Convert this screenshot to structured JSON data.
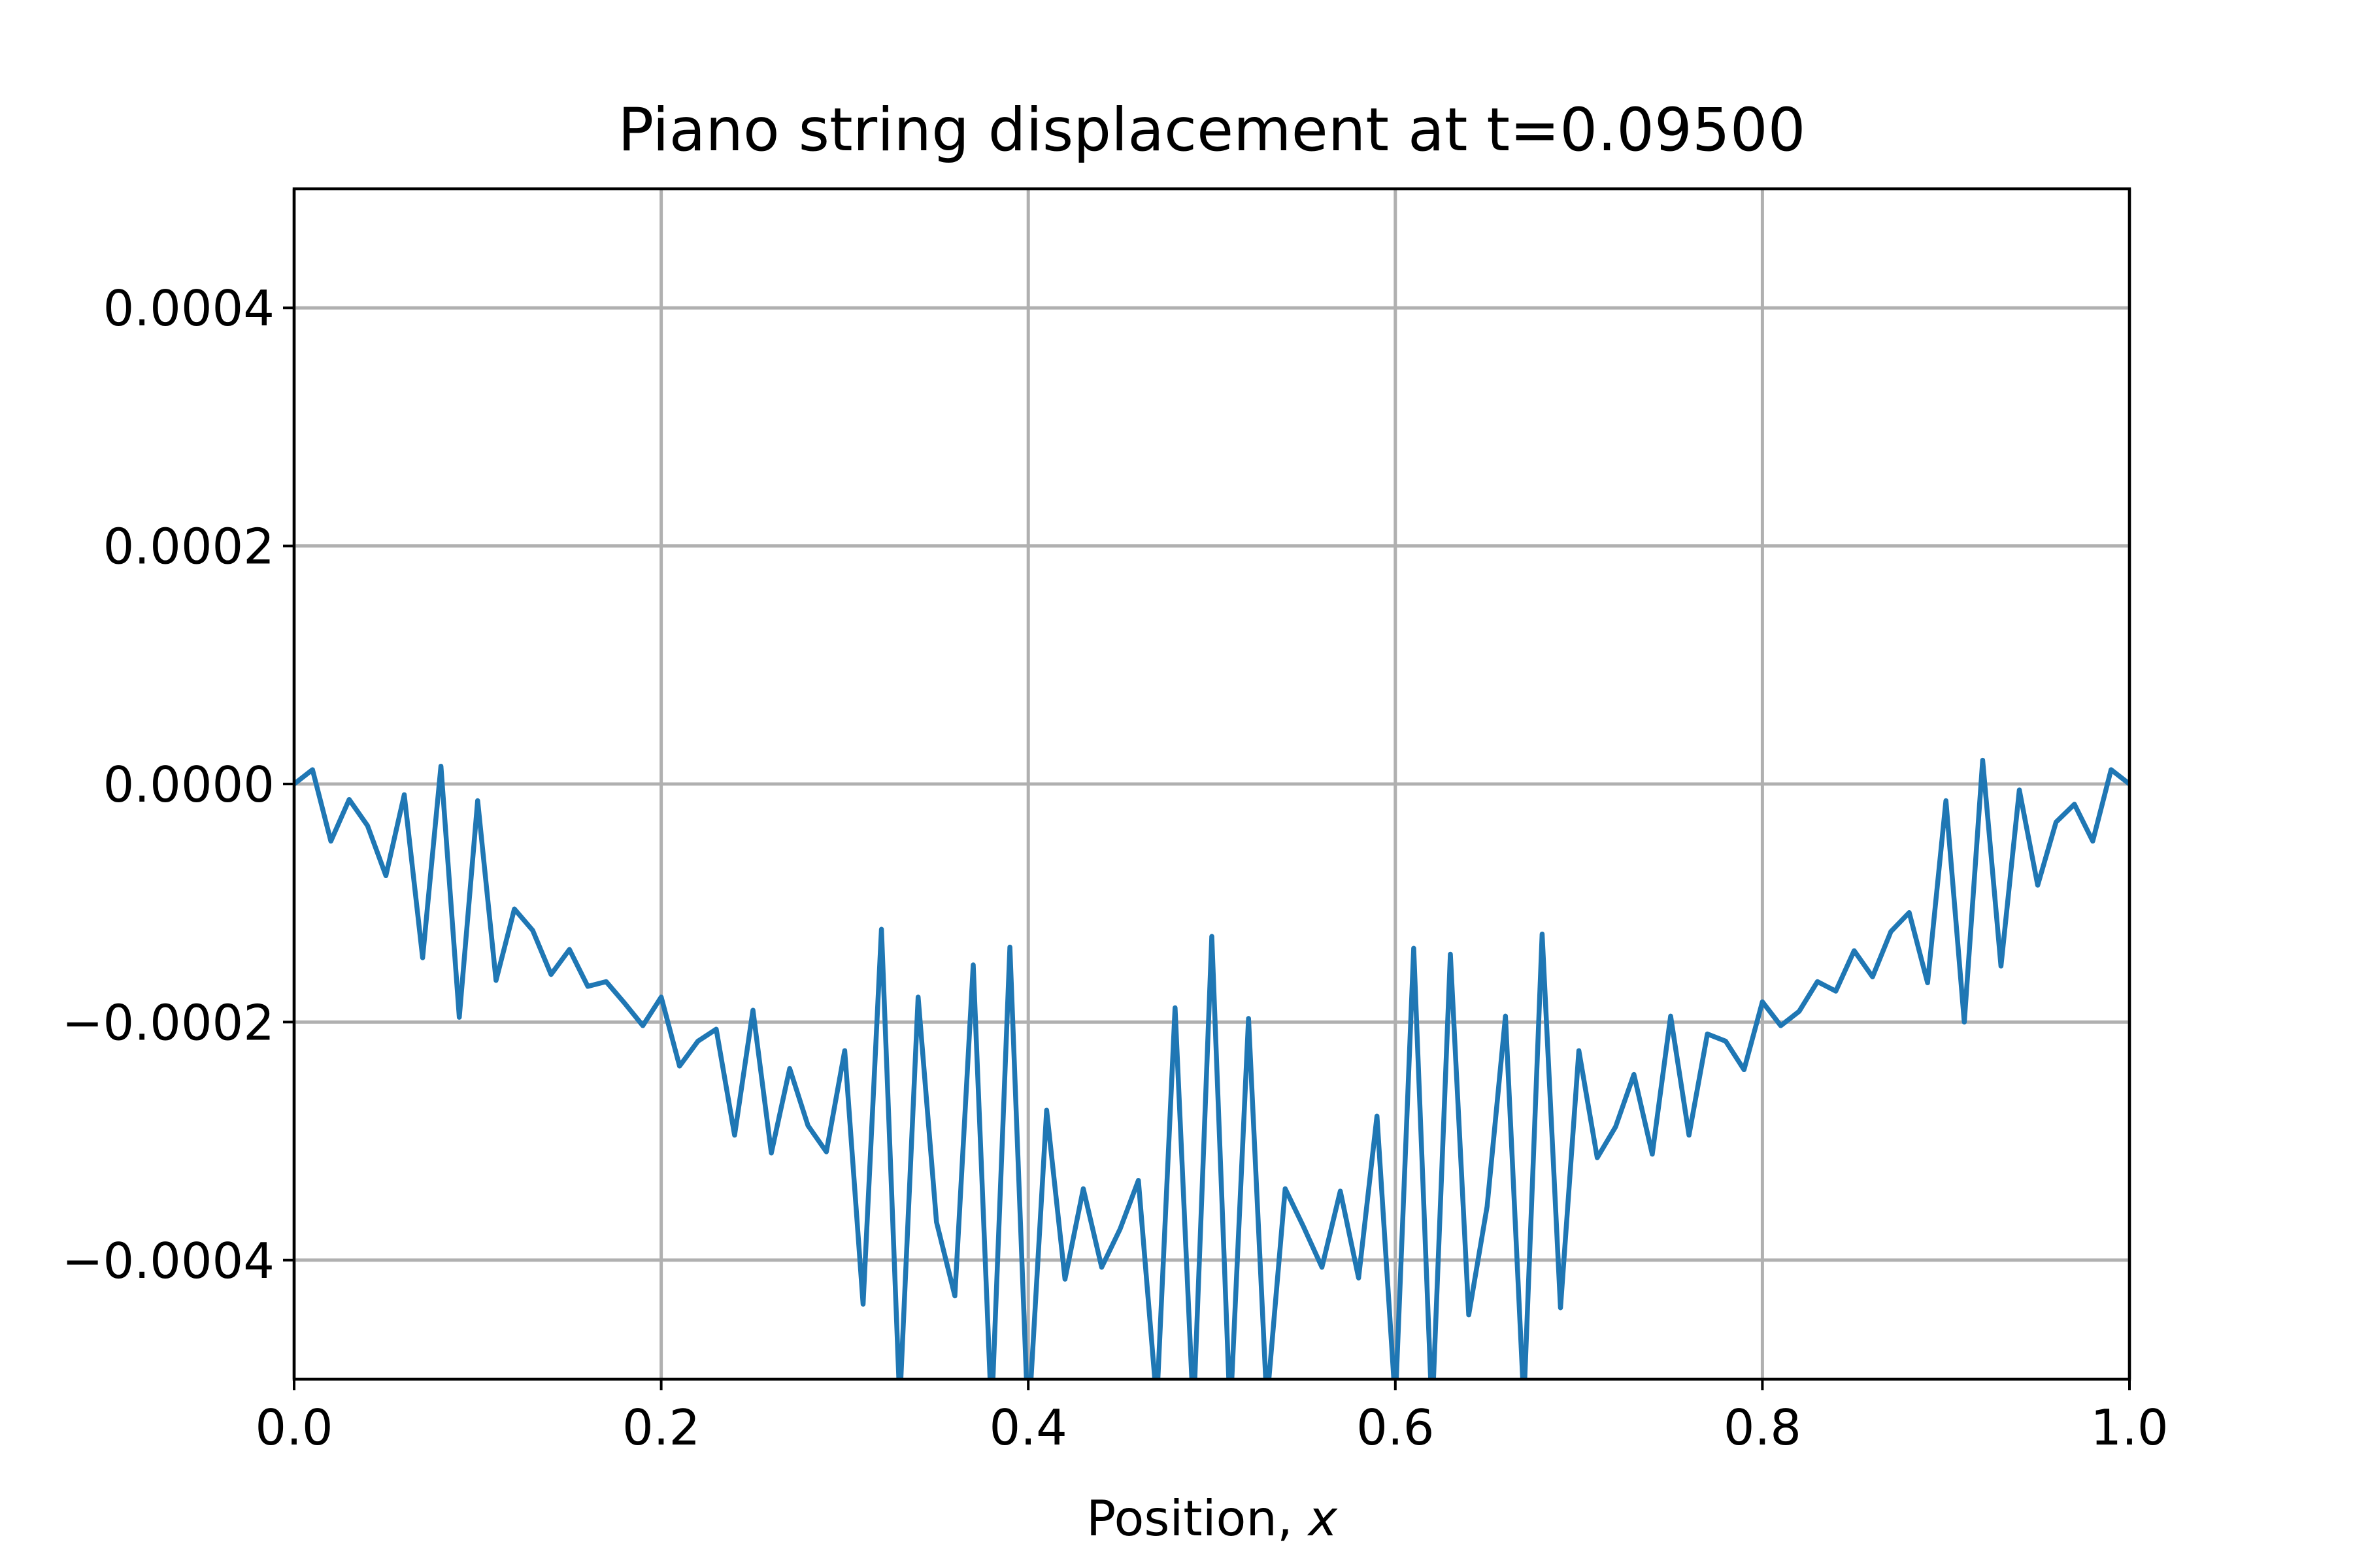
{
  "chart_data": {
    "type": "line",
    "title": "Piano string displacement at t=0.09500",
    "xlabel": "Position, x",
    "xlabel_main": "Position, ",
    "xlabel_var": "x",
    "ylabel": "",
    "xlim": [
      0.0,
      1.0
    ],
    "ylim": [
      -0.0005,
      0.0005
    ],
    "grid": true,
    "xticks": [
      0.0,
      0.2,
      0.4,
      0.6,
      0.8,
      1.0
    ],
    "xtick_labels": [
      "0.0",
      "0.2",
      "0.4",
      "0.6",
      "0.8",
      "1.0"
    ],
    "yticks": [
      -0.0004,
      -0.0002,
      0.0,
      0.0002,
      0.0004
    ],
    "ytick_labels": [
      "−0.0004",
      "−0.0002",
      "0.0000",
      "0.0002",
      "0.0004"
    ],
    "series_color": "#1f77b4",
    "x": [
      0.0,
      0.01,
      0.02,
      0.03,
      0.04,
      0.05,
      0.06,
      0.07,
      0.08,
      0.09,
      0.1,
      0.11,
      0.12,
      0.13,
      0.14,
      0.15,
      0.16,
      0.17,
      0.18,
      0.19,
      0.2,
      0.21,
      0.22,
      0.23,
      0.24,
      0.25,
      0.26,
      0.27,
      0.28,
      0.29,
      0.3,
      0.31,
      0.32,
      0.33,
      0.34,
      0.35,
      0.36,
      0.37,
      0.38,
      0.39,
      0.4,
      0.41,
      0.42,
      0.43,
      0.44,
      0.45,
      0.46,
      0.47,
      0.48,
      0.49,
      0.5,
      0.51,
      0.52,
      0.53,
      0.54,
      0.55,
      0.56,
      0.57,
      0.58,
      0.59,
      0.6,
      0.61,
      0.62,
      0.63,
      0.64,
      0.65,
      0.66,
      0.67,
      0.68,
      0.69,
      0.7,
      0.71,
      0.72,
      0.73,
      0.74,
      0.75,
      0.76,
      0.77,
      0.78,
      0.79,
      0.8,
      0.81,
      0.82,
      0.83,
      0.84,
      0.85,
      0.86,
      0.87,
      0.88,
      0.89,
      0.9,
      0.91,
      0.92,
      0.93,
      0.94,
      0.95,
      0.96,
      0.97,
      0.98,
      0.99,
      1.0
    ],
    "series": [
      {
        "values": [
          0.0,
          1.2e-05,
          -4.8e-05,
          -1.3e-05,
          -3.5e-05,
          -7.7e-05,
          -9e-06,
          -0.000146,
          1.5e-05,
          -0.000196,
          -1.4e-05,
          -0.000165,
          -0.000105,
          -0.000123,
          -0.00016,
          -0.000139,
          -0.00017,
          -0.000166,
          -0.000184,
          -0.000203,
          -0.000179,
          -0.000237,
          -0.000216,
          -0.000206,
          -0.000295,
          -0.00019,
          -0.00031,
          -0.000239,
          -0.000287,
          -0.000309,
          -0.000224,
          -0.000437,
          -0.000122,
          -0.00052,
          -0.000179,
          -0.000368,
          -0.00043,
          -0.000152,
          -0.00053,
          -0.000137,
          -0.00054,
          -0.000274,
          -0.000416,
          -0.00034,
          -0.000406,
          -0.000374,
          -0.000333,
          -0.00052,
          -0.000188,
          -0.00053,
          -0.000128,
          -0.00053,
          -0.000197,
          -0.00052,
          -0.00034,
          -0.000372,
          -0.000406,
          -0.000342,
          -0.000415,
          -0.000279,
          -0.00052,
          -0.000138,
          -0.00053,
          -0.000143,
          -0.000446,
          -0.000355,
          -0.000195,
          -0.00052,
          -0.000126,
          -0.00044,
          -0.000224,
          -0.000314,
          -0.000288,
          -0.000244,
          -0.000311,
          -0.000195,
          -0.000295,
          -0.00021,
          -0.000216,
          -0.00024,
          -0.000183,
          -0.000203,
          -0.000191,
          -0.000166,
          -0.000174,
          -0.00014,
          -0.000162,
          -0.000124,
          -0.000108,
          -0.000167,
          -1.4e-05,
          -0.0002,
          2e-05,
          -0.000153,
          -5e-06,
          -8.5e-05,
          -3.2e-05,
          -1.7e-05,
          -4.8e-05,
          1.2e-05,
          0.0
        ]
      }
    ]
  }
}
